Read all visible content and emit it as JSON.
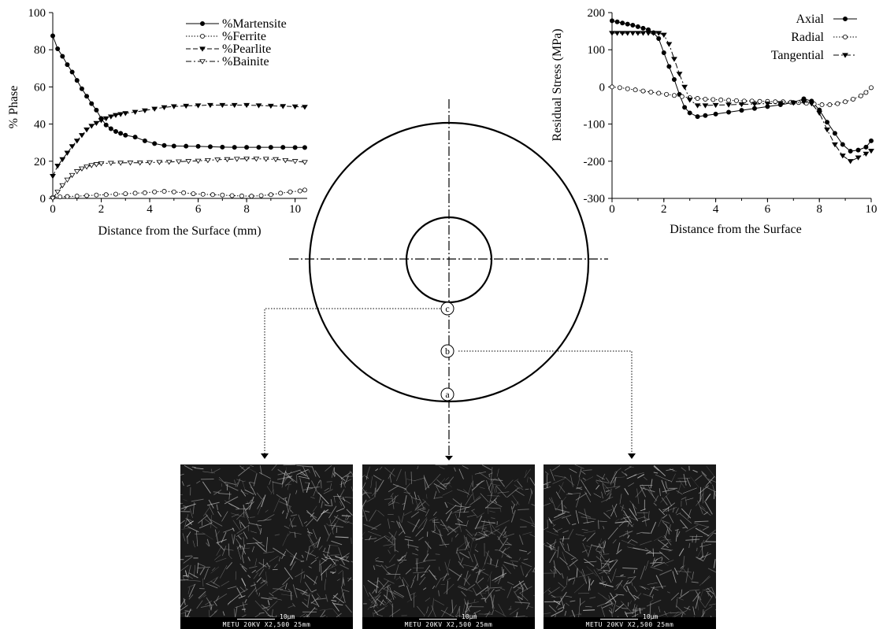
{
  "chart_data": [
    {
      "type": "line",
      "xlabel": "Distance from the Surface (mm)",
      "ylabel": "% Phase",
      "xlim": [
        0,
        10.5
      ],
      "ylim": [
        0,
        100
      ],
      "xticks": [
        "0",
        "2",
        "4",
        "6",
        "8",
        "10"
      ],
      "yticks": [
        "0",
        "20",
        "40",
        "60",
        "80",
        "100"
      ],
      "legend": "top-right",
      "series": [
        {
          "name": "%Martensite",
          "marker": "filled-circle",
          "line": "solid",
          "x": [
            0,
            0.2,
            0.4,
            0.6,
            0.8,
            1.0,
            1.2,
            1.4,
            1.6,
            1.8,
            2.0,
            2.2,
            2.4,
            2.6,
            2.8,
            3.0,
            3.4,
            3.8,
            4.2,
            4.6,
            5.0,
            5.5,
            6.0,
            6.5,
            7.0,
            7.5,
            8.0,
            8.5,
            9.0,
            9.5,
            10.0,
            10.4
          ],
          "values": [
            87.5,
            80.5,
            76.5,
            72,
            68,
            63.5,
            59,
            55,
            51,
            47.5,
            43,
            39.5,
            37.5,
            36,
            35,
            34,
            33,
            31,
            29.5,
            28.5,
            28.2,
            28.1,
            28,
            27.8,
            27.6,
            27.5,
            27.5,
            27.5,
            27.5,
            27.5,
            27.4,
            27.4
          ]
        },
        {
          "name": "%Ferrite",
          "marker": "open-circle",
          "line": "dotted",
          "x": [
            0,
            0.3,
            0.6,
            1.0,
            1.4,
            1.8,
            2.2,
            2.6,
            3.0,
            3.4,
            3.8,
            4.2,
            4.6,
            5.0,
            5.4,
            5.8,
            6.2,
            6.6,
            7.0,
            7.4,
            7.8,
            8.2,
            8.6,
            9.0,
            9.4,
            9.8,
            10.2,
            10.4
          ],
          "values": [
            0.5,
            0.8,
            1,
            1.2,
            1.5,
            1.8,
            2,
            2.3,
            2.5,
            2.8,
            3,
            3.5,
            3.8,
            3.5,
            3,
            2.5,
            2.2,
            2,
            1.8,
            1.5,
            1.3,
            1.2,
            1.5,
            2,
            2.8,
            3.5,
            4,
            4.5
          ]
        },
        {
          "name": "%Pearlite",
          "marker": "filled-triangle-down",
          "line": "dashed",
          "x": [
            0,
            0.2,
            0.4,
            0.6,
            0.8,
            1.0,
            1.2,
            1.4,
            1.6,
            1.8,
            2.0,
            2.2,
            2.4,
            2.6,
            2.8,
            3.0,
            3.4,
            3.8,
            4.2,
            4.6,
            5.0,
            5.5,
            6.0,
            6.5,
            7.0,
            7.5,
            8.0,
            8.5,
            9.0,
            9.5,
            10.0,
            10.4
          ],
          "values": [
            12,
            17.5,
            21,
            24.5,
            28,
            31,
            34,
            37,
            39,
            40.5,
            42,
            43,
            44,
            44.8,
            45.3,
            45.8,
            46.5,
            47.3,
            48.2,
            49,
            49.5,
            49.8,
            50,
            50.2,
            50.2,
            50.2,
            50.2,
            50,
            49.8,
            49.6,
            49.4,
            49.2
          ]
        },
        {
          "name": "%Bainite",
          "marker": "open-triangle-down",
          "line": "dash-dot",
          "x": [
            0,
            0.2,
            0.4,
            0.6,
            0.8,
            1.0,
            1.2,
            1.4,
            1.6,
            1.8,
            2.0,
            2.4,
            2.8,
            3.2,
            3.6,
            4.0,
            4.4,
            4.8,
            5.2,
            5.6,
            6.0,
            6.4,
            6.8,
            7.2,
            7.6,
            8.0,
            8.4,
            8.8,
            9.2,
            9.6,
            10.0,
            10.4
          ],
          "values": [
            0,
            3.5,
            7,
            10,
            12.5,
            14.5,
            16,
            17,
            17.8,
            18.3,
            18.8,
            19,
            19.1,
            19.2,
            19.2,
            19.3,
            19.5,
            19.6,
            19.8,
            20,
            20.2,
            20.5,
            20.8,
            21,
            21.2,
            21.3,
            21.3,
            21.2,
            21,
            20.5,
            20,
            19.5
          ]
        }
      ]
    },
    {
      "type": "line",
      "xlabel": "Distance from the Surface",
      "ylabel": "Residual Stress (MPa)",
      "xlim": [
        0,
        10
      ],
      "ylim": [
        -300,
        200
      ],
      "xticks": [
        "0",
        "2",
        "4",
        "6",
        "8",
        "10"
      ],
      "yticks": [
        "-300",
        "-200",
        "-100",
        "0",
        "100",
        "200"
      ],
      "legend": "top-right",
      "series": [
        {
          "name": "Axial",
          "marker": "filled-circle",
          "line": "solid",
          "x": [
            0,
            0.2,
            0.4,
            0.6,
            0.8,
            1.0,
            1.2,
            1.4,
            1.6,
            1.8,
            2.0,
            2.2,
            2.4,
            2.6,
            2.8,
            3.0,
            3.3,
            3.6,
            4.0,
            4.5,
            5.0,
            5.5,
            6.0,
            6.5,
            7.0,
            7.4,
            7.7,
            8.0,
            8.3,
            8.6,
            8.9,
            9.2,
            9.5,
            9.8,
            10.0
          ],
          "values": [
            178,
            175,
            172,
            169,
            166,
            162,
            158,
            154,
            146,
            130,
            92,
            55,
            20,
            -20,
            -55,
            -70,
            -80,
            -77,
            -73,
            -68,
            -63,
            -58,
            -53,
            -48,
            -42,
            -32,
            -38,
            -62,
            -95,
            -125,
            -155,
            -173,
            -170,
            -162,
            -145
          ]
        },
        {
          "name": "Radial",
          "marker": "open-circle",
          "line": "dotted",
          "x": [
            0,
            0.3,
            0.6,
            0.9,
            1.2,
            1.5,
            1.8,
            2.1,
            2.4,
            2.7,
            3.0,
            3.3,
            3.6,
            3.9,
            4.2,
            4.5,
            4.8,
            5.1,
            5.4,
            5.7,
            6.0,
            6.3,
            6.6,
            6.9,
            7.2,
            7.5,
            7.8,
            8.1,
            8.4,
            8.7,
            9.0,
            9.3,
            9.6,
            9.8,
            10.0
          ],
          "values": [
            0,
            -2,
            -5,
            -8,
            -11,
            -14,
            -17,
            -20,
            -23,
            -26,
            -29,
            -31,
            -33,
            -34,
            -35,
            -36,
            -37,
            -38,
            -38,
            -39,
            -39,
            -40,
            -40,
            -41,
            -42,
            -44,
            -46,
            -48,
            -48,
            -45,
            -40,
            -33,
            -24,
            -15,
            -2
          ]
        },
        {
          "name": "Tangential",
          "marker": "filled-triangle-down",
          "line": "dash-dot",
          "x": [
            0,
            0.2,
            0.4,
            0.6,
            0.8,
            1.0,
            1.2,
            1.4,
            1.6,
            1.8,
            2.0,
            2.2,
            2.4,
            2.6,
            2.8,
            3.0,
            3.3,
            3.6,
            4.0,
            4.5,
            5.0,
            5.5,
            6.0,
            6.5,
            7.0,
            7.4,
            7.7,
            8.0,
            8.3,
            8.6,
            8.9,
            9.2,
            9.5,
            9.8,
            10.0
          ],
          "values": [
            145,
            145,
            145,
            145,
            145,
            145,
            145,
            145,
            145,
            145,
            140,
            115,
            75,
            35,
            0,
            -35,
            -50,
            -50,
            -49,
            -48,
            -47,
            -46,
            -45,
            -44,
            -43,
            -40,
            -45,
            -70,
            -115,
            -155,
            -185,
            -200,
            -190,
            -180,
            -172
          ]
        }
      ]
    }
  ],
  "diagram": {
    "points": [
      "a",
      "b",
      "c"
    ]
  },
  "micrographs": [
    {
      "caption": "METU  20KV  X2,500 25mm",
      "scale_label": "10µm"
    },
    {
      "caption": "METU  20KV  X2,500 25mm",
      "scale_label": "10µm"
    },
    {
      "caption": "METU  20KV  X2,500 25mm",
      "scale_label": "10µm"
    }
  ]
}
